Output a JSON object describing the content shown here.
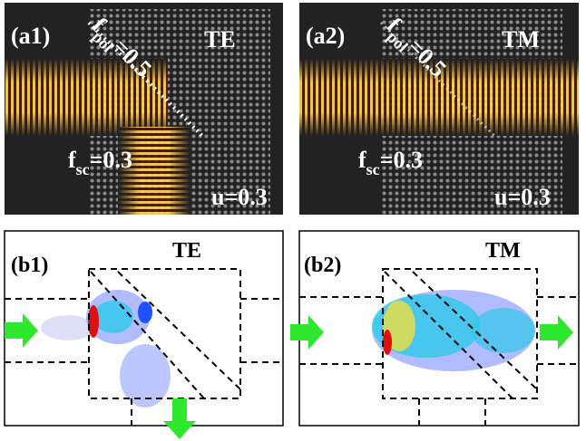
{
  "top_panels": [
    {
      "label": "(a1)",
      "mode": "TE",
      "f_pol": {
        "symbol": "f",
        "subscript": "pol",
        "value": "=0.5"
      },
      "f_sc": {
        "symbol": "f",
        "subscript": "sc",
        "value": "=0.3"
      },
      "u": "u=0.3"
    },
    {
      "label": "(a2)",
      "mode": "TM",
      "f_pol": {
        "symbol": "f",
        "subscript": "pol",
        "value": "=0.5"
      },
      "f_sc": {
        "symbol": "f",
        "subscript": "sc",
        "value": "=0.3"
      },
      "u": "u=0.3"
    }
  ],
  "bottom_panels": [
    {
      "label": "(b1)",
      "mode": "TE"
    },
    {
      "label": "(b2)",
      "mode": "TM"
    }
  ]
}
